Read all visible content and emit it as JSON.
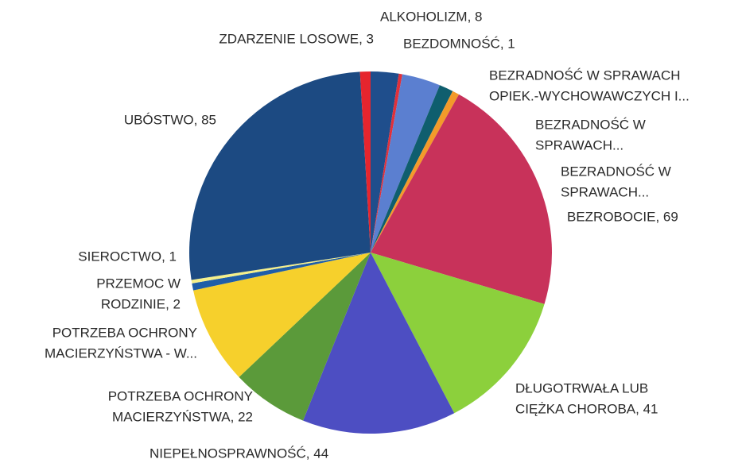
{
  "chart_data": {
    "type": "pie",
    "categories": [
      [
        "ALKOHOLIZM, 8"
      ],
      [
        "BEZDOMNOŚĆ, 1"
      ],
      [
        "BEZRADNOŚĆ W SPRAWACH",
        "OPIEK.-WYCHOWAWCZYCH I..."
      ],
      [
        "BEZRADNOŚĆ W",
        "SPRAWACH..."
      ],
      [
        "BEZRADNOŚĆ W",
        "SPRAWACH..."
      ],
      [
        "BEZROBOCIE, 69"
      ],
      [
        "DŁUGOTRWAŁA LUB",
        "CIĘŻKA CHOROBA, 41"
      ],
      [
        "NIEPEŁNOSPRAWNOŚĆ, 44"
      ],
      [
        "POTRZEBA OCHRONY",
        "MACIERZYŃSTWA, 22"
      ],
      [
        "POTRZEBA OCHRONY",
        "MACIERZYŃSTWA - W..."
      ],
      [
        "PRZEMOC W",
        "RODZINIE, 2"
      ],
      [
        "SIEROCTWO, 1"
      ],
      [
        "UBÓSTWO, 85"
      ],
      [
        "ZDARZENIE LOSOWE, 3"
      ]
    ],
    "values": [
      8,
      1,
      11,
      4,
      2,
      69,
      41,
      44,
      22,
      28,
      2,
      1,
      85,
      3
    ],
    "colors": [
      "#1f4e8c",
      "#e0303a",
      "#5b7fd0",
      "#0f5e6e",
      "#f39a2a",
      "#c8325a",
      "#8cd03c",
      "#4d4ec2",
      "#5b9a3a",
      "#f6d02c",
      "#1f5ea8",
      "#f5f08a",
      "#1c4a82",
      "#e6252e"
    ]
  }
}
